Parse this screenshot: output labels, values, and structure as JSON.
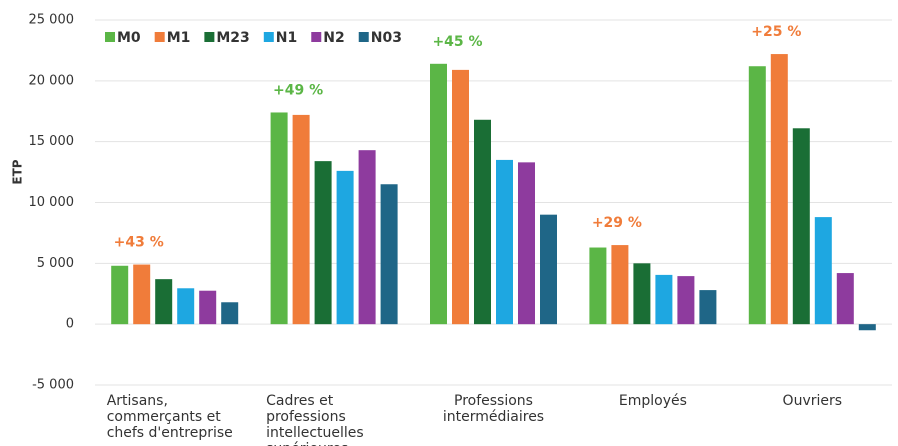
{
  "chart_data": {
    "type": "bar",
    "y_label": "ETP",
    "categories": [
      "Artisans, commerçants et chefs d'entreprise",
      "Cadres et professions intellectuelles supérieures",
      "Professions intermédiaires",
      "Employés",
      "Ouvriers"
    ],
    "series": [
      {
        "name": "M0",
        "color": "#5bb646",
        "values": [
          4800,
          17400,
          21400,
          6300,
          21200
        ]
      },
      {
        "name": "M1",
        "color": "#f07c3a",
        "values": [
          4900,
          17200,
          20900,
          6500,
          22200
        ]
      },
      {
        "name": "M23",
        "color": "#1a6e35",
        "values": [
          3700,
          13400,
          16800,
          5000,
          16100
        ]
      },
      {
        "name": "N1",
        "color": "#1ea7e1",
        "values": [
          2950,
          12600,
          13500,
          4050,
          8800
        ]
      },
      {
        "name": "N2",
        "color": "#8e3b9e",
        "values": [
          2750,
          14300,
          13300,
          3950,
          4200
        ]
      },
      {
        "name": "N03",
        "color": "#1f6687",
        "values": [
          1800,
          11500,
          9000,
          2800,
          -500
        ]
      }
    ],
    "annotations": [
      "+43 %",
      "+49 %",
      "+45 %",
      "+29 %",
      "+25 %"
    ],
    "annotation_colors": [
      "#f07c3a",
      "#5bb646",
      "#5bb646",
      "#f07c3a",
      "#f07c3a"
    ],
    "ylim": [
      -5000,
      25000
    ],
    "yticks": [
      {
        "value": -5000,
        "label": "-5 000"
      },
      0,
      {
        "value": 5000,
        "label": "5 000"
      },
      {
        "value": 10000,
        "label": "10 000"
      },
      {
        "value": 15000,
        "label": "15 000"
      },
      {
        "value": 20000,
        "label": "20 000"
      },
      {
        "value": 25000,
        "label": "25 000"
      }
    ],
    "grid": true
  }
}
